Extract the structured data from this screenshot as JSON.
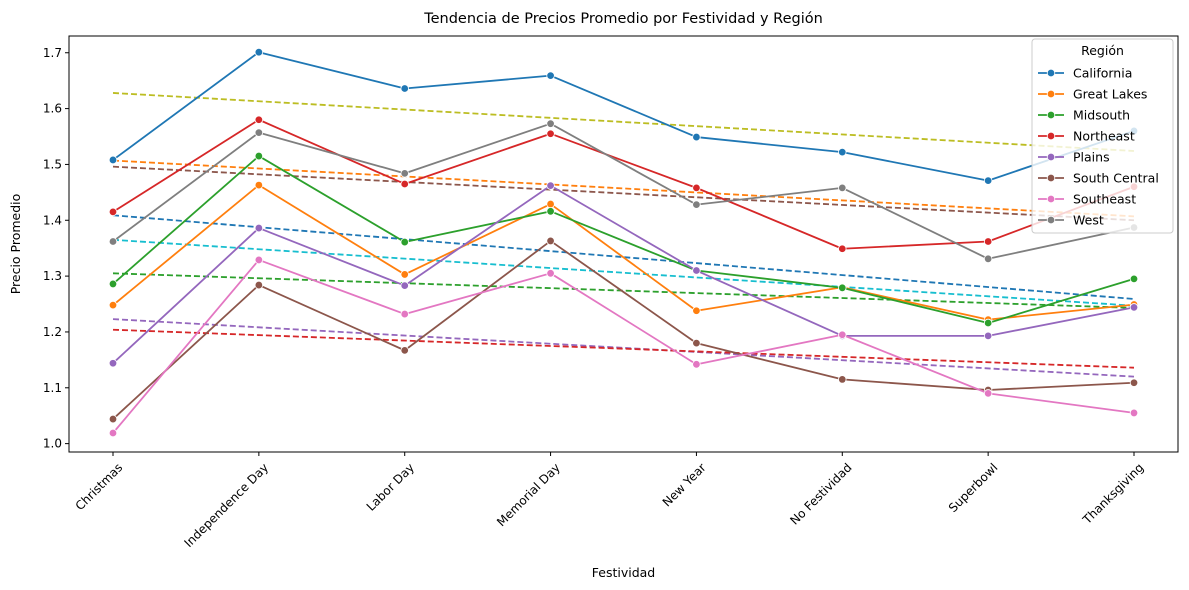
{
  "chart_data": {
    "type": "line",
    "title": "Tendencia de Precios Promedio por Festividad y Región",
    "xlabel": "Festividad",
    "ylabel": "Precio Promedio",
    "categories": [
      "Christmas",
      "Independence Day",
      "Labor Day",
      "Memorial Day",
      "New Year",
      "No Festividad",
      "Superbowl",
      "Thanksgiving"
    ],
    "yticks": [
      "1.0",
      "1.1",
      "1.2",
      "1.3",
      "1.4",
      "1.5",
      "1.6",
      "1.7"
    ],
    "ylim": [
      0.985,
      1.73
    ],
    "grid": false,
    "legend": {
      "title": "Región",
      "placement": "top-right"
    },
    "series": [
      {
        "name": "California",
        "color": "#1f77b4",
        "values": [
          1.508,
          1.701,
          1.636,
          1.659,
          1.549,
          1.522,
          1.471,
          1.56
        ]
      },
      {
        "name": "Great Lakes",
        "color": "#ff7f0e",
        "values": [
          1.248,
          1.463,
          1.303,
          1.429,
          1.238,
          1.28,
          1.222,
          1.249
        ]
      },
      {
        "name": "Midsouth",
        "color": "#2ca02c",
        "values": [
          1.286,
          1.515,
          1.361,
          1.416,
          1.31,
          1.279,
          1.216,
          1.295
        ]
      },
      {
        "name": "Northeast",
        "color": "#d62728",
        "values": [
          1.415,
          1.58,
          1.465,
          1.555,
          1.458,
          1.349,
          1.362,
          1.46
        ]
      },
      {
        "name": "Plains",
        "color": "#9467bd",
        "values": [
          1.144,
          1.386,
          1.283,
          1.462,
          1.31,
          1.193,
          1.193,
          1.244
        ]
      },
      {
        "name": "South Central",
        "color": "#8c564b",
        "values": [
          1.044,
          1.284,
          1.167,
          1.363,
          1.18,
          1.115,
          1.096,
          1.109
        ]
      },
      {
        "name": "Southeast",
        "color": "#e377c2",
        "values": [
          1.019,
          1.329,
          1.232,
          1.305,
          1.142,
          1.195,
          1.09,
          1.055
        ]
      },
      {
        "name": "West",
        "color": "#7f7f7f",
        "values": [
          1.362,
          1.557,
          1.484,
          1.573,
          1.428,
          1.458,
          1.331,
          1.387
        ]
      }
    ],
    "trendlines": [
      {
        "color": "#bcbd22",
        "start": 1.628,
        "end": 1.524
      },
      {
        "color": "#ff7f0e",
        "start": 1.507,
        "end": 1.407
      },
      {
        "color": "#8c564b",
        "start": 1.496,
        "end": 1.4
      },
      {
        "color": "#1f77b4",
        "start": 1.409,
        "end": 1.259
      },
      {
        "color": "#17becf",
        "start": 1.365,
        "end": 1.247
      },
      {
        "color": "#2ca02c",
        "start": 1.305,
        "end": 1.243
      },
      {
        "color": "#9467bd",
        "start": 1.223,
        "end": 1.12
      },
      {
        "color": "#d62728",
        "start": 1.204,
        "end": 1.136
      }
    ]
  }
}
